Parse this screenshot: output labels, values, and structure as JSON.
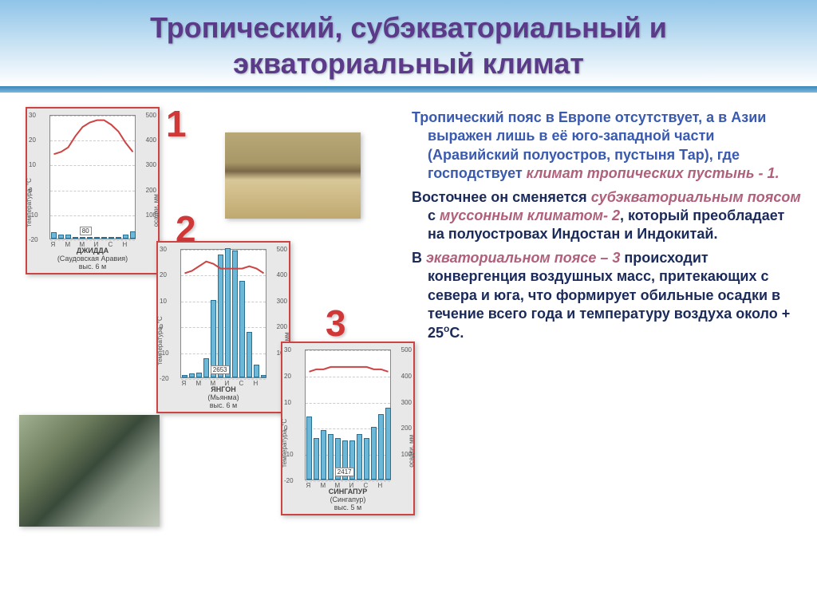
{
  "title_line1": "Тропический, субэкваториальный и",
  "title_line2": "экваториальный климат",
  "labels": {
    "n1": "1",
    "n2": "2",
    "n3": "3"
  },
  "chart1": {
    "caption_line1": "ДЖИДДА",
    "caption_line2": "(Саудовская Аравия)",
    "caption_line3": "выс. 6 м",
    "y_left_ticks": [
      "30",
      "20",
      "10",
      "0",
      "-10",
      "-20"
    ],
    "y_right_ticks": [
      "500",
      "400",
      "300",
      "200",
      "100"
    ],
    "x_labels": [
      "Я",
      "М",
      "М",
      "И",
      "С",
      "Н"
    ],
    "precip_total": "80",
    "precip_bars": [
      5,
      3,
      3,
      0,
      0,
      0,
      0,
      0,
      0,
      0,
      3,
      6
    ],
    "temp_curve_pct": [
      18,
      19,
      21,
      26,
      30,
      32,
      33,
      33,
      31,
      28,
      23,
      19
    ],
    "temp_ylim": [
      -20,
      35
    ],
    "bar_color": "#6bb8d8",
    "line_color": "#c44",
    "bg": "#ffffff",
    "grid": "#cccccc"
  },
  "chart2": {
    "caption_line1": "ЯНГОН",
    "caption_line2": "(Мьянма)",
    "caption_line3": "выс. 6 м",
    "y_left_ticks": [
      "30",
      "20",
      "10",
      "0",
      "-10",
      "-20"
    ],
    "y_right_ticks": [
      "500",
      "400",
      "300",
      "200",
      "100"
    ],
    "x_labels": [
      "Я",
      "М",
      "М",
      "И",
      "С",
      "Н"
    ],
    "precip_total": "2653",
    "precip_bars": [
      2,
      3,
      4,
      15,
      60,
      95,
      100,
      98,
      75,
      35,
      10,
      2
    ],
    "temp_curve_pct": [
      25,
      26,
      28,
      30,
      29,
      27,
      27,
      27,
      27,
      28,
      27,
      25
    ],
    "temp_ylim": [
      -20,
      35
    ],
    "bar_color": "#6bb8d8",
    "line_color": "#c44",
    "bg": "#ffffff",
    "grid": "#cccccc"
  },
  "chart3": {
    "caption_line1": "СИНГАПУР",
    "caption_line2": "(Сингапур)",
    "caption_line3": "выс. 5 м",
    "y_left_ticks": [
      "30",
      "20",
      "10",
      "0",
      "-10",
      "-20"
    ],
    "y_right_ticks": [
      "500",
      "400",
      "300",
      "200",
      "100"
    ],
    "x_labels": [
      "Я",
      "М",
      "М",
      "И",
      "С",
      "Н"
    ],
    "precip_total": "2417",
    "precip_bars": [
      48,
      32,
      38,
      35,
      32,
      30,
      30,
      35,
      32,
      40,
      50,
      55
    ],
    "temp_curve_pct": [
      26,
      27,
      27,
      28,
      28,
      28,
      28,
      28,
      28,
      27,
      27,
      26
    ],
    "temp_ylim": [
      -20,
      35
    ],
    "bar_color": "#6bb8d8",
    "line_color": "#c44",
    "bg": "#ffffff",
    "grid": "#cccccc"
  },
  "text": {
    "p1a": "Тропический пояс в Европе отсутствует, а в Азии выражен лишь в её юго-западной части (Аравийский полуостров, пустыня Тар), где господствует ",
    "p1b": "климат тропических пустынь - 1.",
    "p2a": "Восточнее он сменяется ",
    "p2b": "субэкваториальным поясом ",
    "p2c": "с ",
    "p2d": "муссонным климатом- 2",
    "p2e": ", который преобладает на полуостровах Индостан и Индокитай.",
    "p3a": "В ",
    "p3b": "экваториальном поясе – 3",
    "p3c": " происходит конвергенция воздушных масс, притекающих с севера и юга, что формирует обильные осадки в течение всего года и температуру воздуха около + 25",
    "p3d": "о",
    "p3e": "С."
  },
  "axis_left_label": "температура, °С",
  "axis_right_label": "осадки, мм"
}
